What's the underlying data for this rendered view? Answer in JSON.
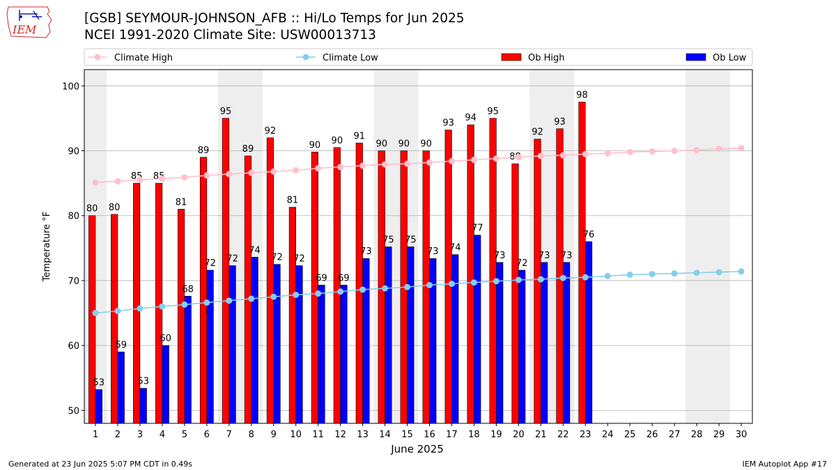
{
  "header": {
    "title_line1": "[GSB] SEYMOUR-JOHNSON_AFB :: Hi/Lo Temps for Jun 2025",
    "title_line2": "NCEI 1991-2020 Climate Site: USW00013713"
  },
  "logo": {
    "text": "IEM",
    "color": "#cc2a2a"
  },
  "footer": {
    "left": "Generated at 23 Jun 2025 5:07 PM CDT in 0.49s",
    "right": "IEM Autoplot App #17"
  },
  "chart_data": {
    "type": "bar",
    "xlabel": "June 2025",
    "ylabel": "Temperature °F",
    "ylim": [
      48,
      102.5
    ],
    "yticks": [
      50,
      60,
      70,
      80,
      90,
      100
    ],
    "grid": "horizontal",
    "legend_placement": "top",
    "categories": [
      "1",
      "2",
      "3",
      "4",
      "5",
      "6",
      "7",
      "8",
      "9",
      "10",
      "11",
      "12",
      "13",
      "14",
      "15",
      "16",
      "17",
      "18",
      "19",
      "20",
      "21",
      "22",
      "23",
      "24",
      "25",
      "26",
      "27",
      "28",
      "29",
      "30"
    ],
    "weekend_days": [
      1,
      7,
      8,
      14,
      15,
      21,
      22,
      28,
      29
    ],
    "ob_high": {
      "name": "Ob High",
      "color": "#ff0000",
      "values": [
        80,
        80.2,
        85,
        85,
        81,
        89,
        95,
        89.2,
        92,
        81.3,
        89.8,
        90.5,
        91.2,
        90,
        90,
        90,
        93.2,
        94,
        95,
        88,
        91.8,
        93.4,
        97.5
      ],
      "labels": [
        80,
        80,
        85,
        85,
        81,
        89,
        95,
        89,
        92,
        81,
        90,
        90,
        91,
        90,
        90,
        90,
        93,
        94,
        95,
        88,
        92,
        93,
        98
      ]
    },
    "ob_low": {
      "name": "Ob Low",
      "color": "#0000ff",
      "values": [
        53.2,
        59,
        53.4,
        60,
        67.6,
        71.6,
        72.3,
        73.6,
        72.5,
        72.3,
        69.3,
        69.3,
        73.4,
        75.2,
        75.2,
        73.4,
        74,
        77,
        72.8,
        71.6,
        72.8,
        72.8,
        76
      ],
      "labels": [
        53,
        59,
        53,
        60,
        68,
        72,
        72,
        74,
        72,
        72,
        69,
        69,
        73,
        75,
        75,
        73,
        74,
        77,
        73,
        72,
        73,
        73,
        76
      ]
    },
    "climate_high": {
      "name": "Climate High",
      "color": "#ffc0cb",
      "values": [
        85.1,
        85.3,
        85.5,
        85.7,
        85.9,
        86.2,
        86.4,
        86.6,
        86.8,
        87.0,
        87.3,
        87.5,
        87.7,
        87.9,
        88.0,
        88.2,
        88.4,
        88.6,
        88.8,
        89.0,
        89.2,
        89.3,
        89.5,
        89.6,
        89.8,
        89.9,
        90.0,
        90.1,
        90.3,
        90.4
      ]
    },
    "climate_low": {
      "name": "Climate Low",
      "color": "#87ceeb",
      "values": [
        65.0,
        65.3,
        65.7,
        66.0,
        66.3,
        66.6,
        66.9,
        67.2,
        67.5,
        67.8,
        68.0,
        68.3,
        68.6,
        68.8,
        69.0,
        69.3,
        69.5,
        69.7,
        69.9,
        70.1,
        70.2,
        70.4,
        70.5,
        70.7,
        70.9,
        71.0,
        71.1,
        71.2,
        71.3,
        71.4
      ]
    }
  }
}
